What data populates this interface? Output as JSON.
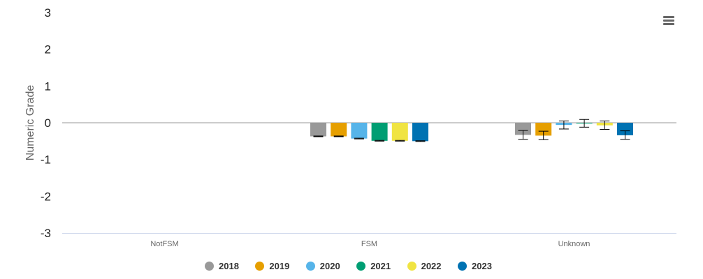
{
  "chart_data": {
    "type": "bar",
    "ylabel": "Numeric Grade",
    "ylim": [
      -3,
      3
    ],
    "yticks": [
      3,
      2,
      1,
      0,
      -1,
      -2,
      -3
    ],
    "categories": [
      "NotFSM",
      "FSM",
      "Unknown"
    ],
    "series": [
      {
        "name": "2018",
        "color": "#999999",
        "values": [
          null,
          -0.37,
          -0.33
        ],
        "err_low": [
          null,
          -0.38,
          -0.45
        ],
        "err_high": [
          null,
          -0.36,
          -0.21
        ]
      },
      {
        "name": "2019",
        "color": "#e69f00",
        "values": [
          null,
          -0.37,
          -0.35
        ],
        "err_low": [
          null,
          -0.38,
          -0.46
        ],
        "err_high": [
          null,
          -0.36,
          -0.23
        ]
      },
      {
        "name": "2020",
        "color": "#56b4e9",
        "values": [
          null,
          -0.43,
          -0.06
        ],
        "err_low": [
          null,
          -0.44,
          -0.17
        ],
        "err_high": [
          null,
          -0.42,
          0.05
        ]
      },
      {
        "name": "2021",
        "color": "#009e73",
        "values": [
          null,
          -0.49,
          -0.02
        ],
        "err_low": [
          null,
          -0.5,
          -0.12
        ],
        "err_high": [
          null,
          -0.48,
          0.09
        ]
      },
      {
        "name": "2022",
        "color": "#f0e442",
        "values": [
          null,
          -0.49,
          -0.07
        ],
        "err_low": [
          null,
          -0.5,
          -0.18
        ],
        "err_high": [
          null,
          -0.48,
          0.05
        ]
      },
      {
        "name": "2023",
        "color": "#0072b2",
        "values": [
          null,
          -0.5,
          -0.34
        ],
        "err_low": [
          null,
          -0.51,
          -0.45
        ],
        "err_high": [
          null,
          -0.49,
          -0.22
        ]
      }
    ],
    "legend_position": "bottom-center",
    "grid": false
  },
  "menu": {
    "icon": "hamburger-menu-icon"
  }
}
